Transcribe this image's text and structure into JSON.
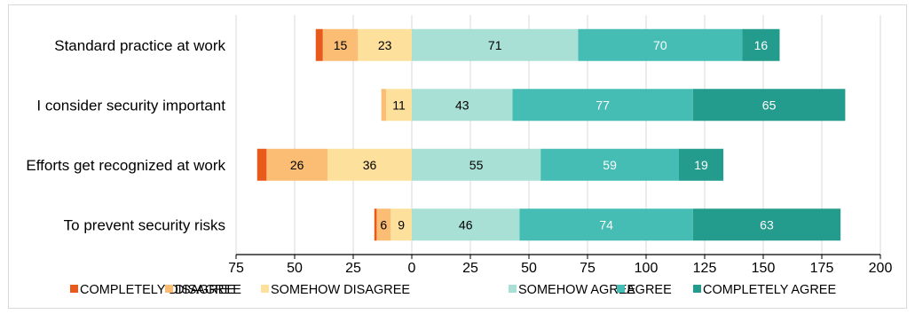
{
  "chart_data": {
    "type": "bar",
    "orientation": "horizontal",
    "stacked": "diverging",
    "title": "",
    "xlabel": "",
    "ylabel": "",
    "categories": [
      "Standard practice at work",
      "I consider security important",
      "Efforts get recognized at work",
      "To prevent security risks"
    ],
    "series": [
      {
        "name": "COMPLETELY DISAGREE",
        "side": "negative",
        "color": "#e8591c",
        "label_color": "#000000",
        "values": [
          3,
          0,
          4,
          1
        ]
      },
      {
        "name": "DISAGREE",
        "side": "negative",
        "color": "#fbbd73",
        "label_color": "#000000",
        "values": [
          15,
          2,
          26,
          6
        ]
      },
      {
        "name": "SOMEHOW DISAGREE",
        "side": "negative",
        "color": "#fde09b",
        "label_color": "#000000",
        "values": [
          23,
          11,
          36,
          9
        ]
      },
      {
        "name": "SOMEHOW AGREE",
        "side": "positive",
        "color": "#a8e0d6",
        "label_color": "#000000",
        "values": [
          71,
          43,
          55,
          46
        ]
      },
      {
        "name": "AGREE",
        "side": "positive",
        "color": "#45bdb4",
        "label_color": "#ffffff",
        "values": [
          70,
          77,
          59,
          74
        ]
      },
      {
        "name": "COMPLETELY AGREE",
        "side": "positive",
        "color": "#239b8d",
        "label_color": "#ffffff",
        "values": [
          16,
          65,
          19,
          63
        ]
      }
    ],
    "data_labels": [
      [
        null,
        "15",
        "23",
        "71",
        "70",
        "16"
      ],
      [
        null,
        null,
        "11",
        "43",
        "77",
        "65"
      ],
      [
        null,
        "26",
        "36",
        "55",
        "59",
        "19"
      ],
      [
        null,
        "6",
        "9",
        "46",
        "74",
        "63"
      ]
    ],
    "xlim": [
      -75,
      200
    ],
    "xticks": [
      -75,
      -50,
      -25,
      0,
      25,
      50,
      75,
      100,
      125,
      150,
      175,
      200
    ],
    "xtick_labels": [
      "75",
      "50",
      "25",
      "0",
      "25",
      "50",
      "75",
      "100",
      "125",
      "150",
      "175",
      "200"
    ],
    "grid": "vertical",
    "legend_position": "bottom"
  }
}
